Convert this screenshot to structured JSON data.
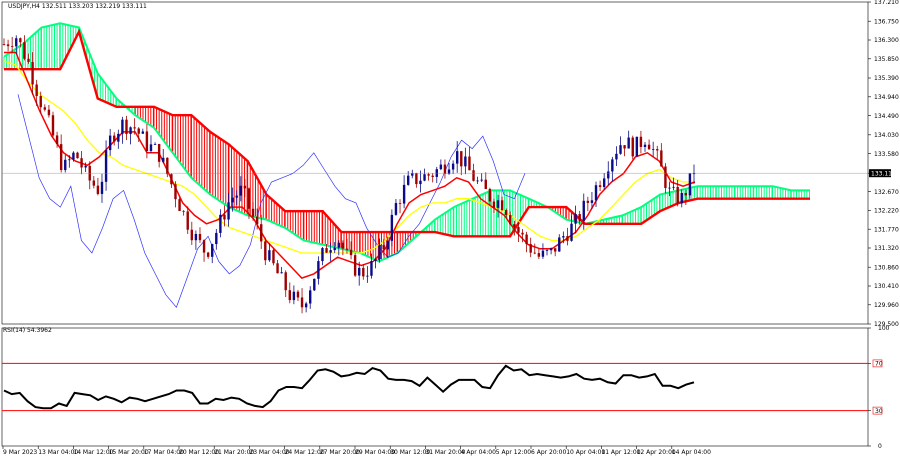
{
  "header": {
    "symbol_line": "USDJPY,H4  132.511 133.203 132.219 133.111",
    "rsi_line": "RSI(14) 54.3962"
  },
  "colors": {
    "bull_candle": "#0b0b8a",
    "bear_candle": "#a00000",
    "tenkan": "#ff0000",
    "kijun": "#ffff00",
    "chikou": "#3030ff",
    "kumo_bull": "#00ff7f",
    "kumo_bear": "#ff0000",
    "rsi_line": "#000000",
    "rsi_levels": "#ff0000",
    "price_tag_bg": "#000000"
  },
  "chart_data": [
    {
      "type": "candlestick",
      "title": "USDJPY,H4",
      "indicator": "Ichimoku Kinko Hyo",
      "ylim": [
        129.5,
        137.21
      ],
      "y_ticks": [
        "137.210",
        "136.750",
        "136.300",
        "135.850",
        "135.390",
        "134.940",
        "134.490",
        "134.030",
        "133.580",
        "133.111",
        "132.670",
        "132.220",
        "131.770",
        "131.320",
        "130.860",
        "130.410",
        "129.960",
        "129.500"
      ],
      "current_price": "133.111",
      "x_labels": [
        "9 Mar 2023",
        "13 Mar 04:00",
        "14 Mar 12:00",
        "15 Mar 20:00",
        "17 Mar 04:00",
        "20 Mar 12:00",
        "21 Mar 20:00",
        "23 Mar 04:00",
        "24 Mar 12:00",
        "27 Mar 20:00",
        "29 Mar 04:00",
        "30 Mar 12:00",
        "31 Mar 20:00",
        "4 Apr 04:00",
        "5 Apr 12:00",
        "6 Apr 20:00",
        "10 Apr 04:00",
        "11 Apr 12:00",
        "12 Apr 20:00",
        "14 Apr 04:00"
      ],
      "close_path": [
        136.2,
        136.4,
        135.8,
        134.9,
        134.1,
        133.2,
        133.6,
        133.0,
        132.7,
        134.0,
        134.3,
        134.2,
        133.8,
        133.6,
        132.9,
        132.2,
        131.6,
        131.2,
        131.8,
        132.5,
        132.7,
        132.0,
        131.2,
        130.7,
        130.2,
        129.9,
        130.6,
        131.3,
        131.6,
        131.0,
        130.7,
        130.9,
        131.4,
        132.4,
        132.9,
        133.0,
        133.1,
        133.3,
        133.6,
        133.2,
        132.8,
        132.5,
        132.4,
        131.8,
        131.4,
        131.1,
        131.2,
        131.6,
        131.9,
        132.4,
        132.9,
        133.5,
        133.9,
        133.7,
        134.0,
        133.4,
        132.6,
        132.5,
        133.111
      ],
      "tenkan": [
        136.0,
        136.0,
        135.3,
        134.6,
        134.0,
        133.6,
        133.4,
        133.3,
        133.5,
        133.8,
        134.1,
        134.1,
        133.6,
        133.6,
        133.0,
        132.4,
        132.1,
        131.9,
        132.0,
        132.3,
        132.3,
        132.0,
        131.5,
        131.2,
        130.9,
        130.6,
        130.7,
        130.9,
        131.1,
        131.0,
        130.9,
        131.0,
        131.3,
        131.9,
        132.4,
        132.6,
        132.7,
        132.8,
        133.0,
        132.9,
        132.5,
        132.3,
        132.1,
        131.7,
        131.4,
        131.3,
        131.3,
        131.5,
        131.7,
        132.1,
        132.6,
        132.9,
        133.1,
        133.5,
        133.6,
        133.4,
        132.9,
        132.8,
        132.9
      ],
      "kijun": [
        135.8,
        135.7,
        135.3,
        135.0,
        134.8,
        134.6,
        134.3,
        133.9,
        133.6,
        133.5,
        133.3,
        133.2,
        133.1,
        133.0,
        132.9,
        132.8,
        132.6,
        132.3,
        132.0,
        131.8,
        131.7,
        131.6,
        131.5,
        131.4,
        131.3,
        131.2,
        131.2,
        131.2,
        131.2,
        131.2,
        131.2,
        131.3,
        131.5,
        131.8,
        132.1,
        132.3,
        132.4,
        132.4,
        132.5,
        132.5,
        132.4,
        132.3,
        132.2,
        132.0,
        131.8,
        131.6,
        131.5,
        131.5,
        131.6,
        131.8,
        132.0,
        132.3,
        132.6,
        132.9,
        133.1,
        133.2,
        133.0,
        132.9,
        132.9
      ],
      "chikou": [
        135.0,
        134.0,
        133.0,
        132.5,
        132.3,
        132.8,
        131.5,
        131.2,
        131.8,
        132.5,
        132.7,
        132.0,
        131.2,
        130.7,
        130.2,
        129.9,
        130.6,
        131.3,
        131.6,
        131.0,
        130.7,
        130.9,
        131.4,
        132.4,
        132.9,
        133.0,
        133.1,
        133.3,
        133.6,
        133.2,
        132.8,
        132.5,
        132.4,
        131.8,
        131.4,
        131.1,
        131.2,
        131.6,
        131.9,
        132.4,
        132.9,
        133.5,
        133.9,
        133.7,
        134.0,
        133.4,
        132.6,
        132.5,
        133.111
      ],
      "senkou_a": [
        135.9,
        136.2,
        136.6,
        136.7,
        136.6,
        135.5,
        134.9,
        134.5,
        134.2,
        133.6,
        133.0,
        132.6,
        132.3,
        132.1,
        132.0,
        131.8,
        131.5,
        131.4,
        131.3,
        131.2,
        131.0,
        131.2,
        131.6,
        132.0,
        132.3,
        132.5,
        132.7,
        132.7,
        132.5,
        132.3,
        132.0,
        131.9,
        132.0,
        132.1,
        132.3,
        132.6,
        132.7,
        132.8,
        132.8,
        132.8,
        132.8,
        132.8,
        132.7,
        132.7
      ],
      "senkou_b": [
        135.6,
        135.6,
        135.6,
        135.6,
        136.5,
        134.9,
        134.7,
        134.7,
        134.7,
        134.5,
        134.5,
        134.1,
        133.8,
        133.4,
        132.6,
        132.2,
        132.2,
        132.2,
        131.7,
        131.7,
        131.7,
        131.7,
        131.7,
        131.7,
        131.6,
        131.6,
        131.6,
        131.6,
        132.3,
        132.3,
        132.3,
        131.9,
        131.9,
        131.9,
        131.9,
        132.2,
        132.4,
        132.5,
        132.5,
        132.5,
        132.5,
        132.5,
        132.5,
        132.5
      ]
    },
    {
      "type": "line",
      "title": "RSI(14) 54.3962",
      "ylim": [
        0,
        100
      ],
      "y_ticks": [
        "100",
        "70",
        "30",
        "0"
      ],
      "levels": [
        70,
        30
      ],
      "values": [
        47,
        44,
        45,
        38,
        33,
        32,
        32,
        36,
        34,
        45,
        44,
        43,
        39,
        42,
        40,
        37,
        41,
        40,
        38,
        40,
        42,
        44,
        47,
        47,
        45,
        36,
        36,
        40,
        39,
        41,
        40,
        36,
        34,
        33,
        38,
        47,
        50,
        50,
        49,
        56,
        64,
        65,
        63,
        59,
        60,
        62,
        61,
        66,
        64,
        57,
        56,
        56,
        55,
        51,
        58,
        52,
        46,
        52,
        56,
        56,
        56,
        50,
        49,
        60,
        68,
        64,
        65,
        60,
        61,
        60,
        59,
        58,
        59,
        61,
        57,
        56,
        57,
        54,
        53,
        60,
        60,
        58,
        59,
        61,
        51,
        51,
        49,
        52,
        54
      ]
    }
  ]
}
